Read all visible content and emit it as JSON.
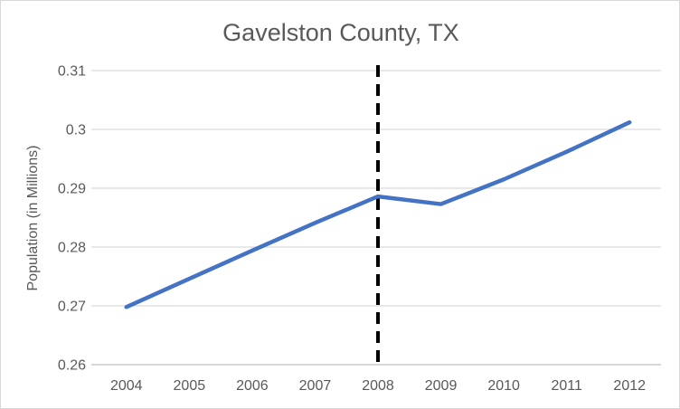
{
  "window": {
    "background": "#ffffff",
    "border_color": "#d9d9d9"
  },
  "chart_data": {
    "type": "line",
    "title": "Gavelston County, TX",
    "categories": [
      "2004",
      "2005",
      "2006",
      "2007",
      "2008",
      "2009",
      "2010",
      "2011",
      "2012"
    ],
    "series": [
      {
        "name": "Population",
        "color": "#4472C4",
        "values": [
          0.2698,
          0.2746,
          0.2794,
          0.2841,
          0.2886,
          0.2873,
          0.2915,
          0.2962,
          0.3012
        ]
      }
    ],
    "xlabel": "",
    "ylabel": "Population (in Millions)",
    "ylim": [
      0.26,
      0.31
    ],
    "yticks": [
      0.26,
      0.27,
      0.28,
      0.29,
      0.3,
      0.31
    ],
    "ytick_labels": [
      "0.26",
      "0.27",
      "0.28",
      "0.29",
      "0.3",
      "0.31"
    ],
    "grid": true,
    "legend": "none",
    "annotations": [
      {
        "type": "vline",
        "category": "2008",
        "style": "dashed",
        "color": "#000000"
      }
    ],
    "colors": {
      "gridline": "#d9d9d9",
      "axis_line": "#bfbfbf",
      "text": "#595959"
    }
  }
}
